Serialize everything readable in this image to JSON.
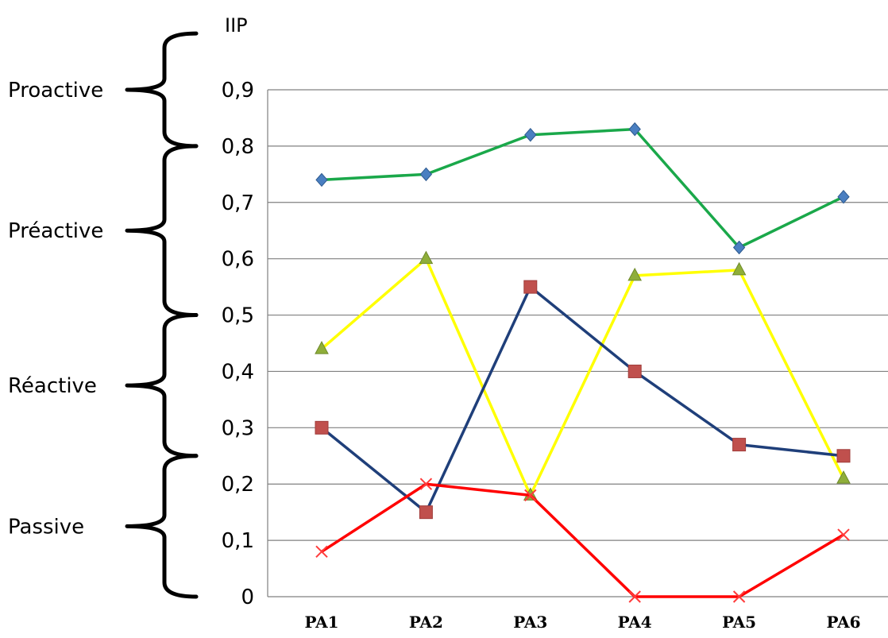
{
  "chart_data": {
    "type": "line",
    "ylabel": "IIP",
    "xlabel": "",
    "title": "",
    "categories": [
      "PA1",
      "PA2",
      "PA3",
      "PA4",
      "PA5",
      "PA6"
    ],
    "yticks": [
      "0",
      "0,1",
      "0,2",
      "0,3",
      "0,4",
      "0,5",
      "0,6",
      "0,7",
      "0,8",
      "0,9"
    ],
    "ylim": [
      0,
      0.9
    ],
    "grid": true,
    "legend": "none",
    "bands": [
      {
        "label": "Proactive",
        "from": 0.8,
        "to": 1.0
      },
      {
        "label": "Préactive",
        "from": 0.5,
        "to": 0.8
      },
      {
        "label": "Réactive",
        "from": 0.25,
        "to": 0.5
      },
      {
        "label": "Passive",
        "from": 0.0,
        "to": 0.25
      }
    ],
    "series": [
      {
        "values": [
          0.74,
          0.75,
          0.82,
          0.83,
          0.62,
          0.71
        ],
        "color": "#1aa84a",
        "marker": "diamond",
        "marker_color": "#4a7fc1"
      },
      {
        "values": [
          0.44,
          0.6,
          0.18,
          0.57,
          0.58,
          0.21
        ],
        "color": "#ffff00",
        "marker": "triangle",
        "marker_color": "#8fae3a"
      },
      {
        "values": [
          0.3,
          0.15,
          0.55,
          0.4,
          0.27,
          0.25
        ],
        "color": "#1f3f7a",
        "marker": "square",
        "marker_color": "#c0504d"
      },
      {
        "values": [
          0.08,
          0.2,
          0.18,
          0.0,
          0.0,
          0.11
        ],
        "color": "#ff0000",
        "marker": "x",
        "marker_color": "#ff3b3b"
      }
    ]
  }
}
